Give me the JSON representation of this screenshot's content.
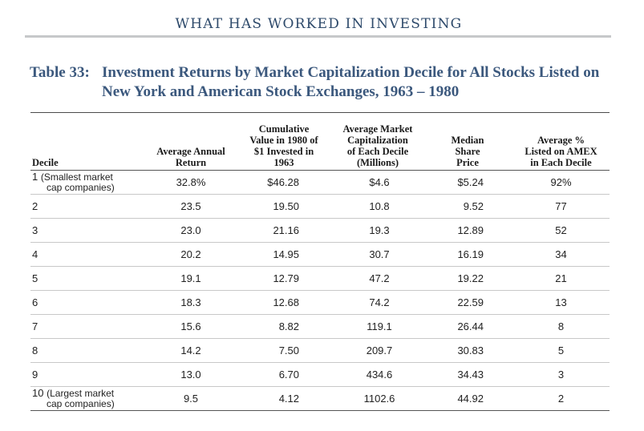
{
  "running_head": "WHAT HAS WORKED IN INVESTING",
  "table": {
    "number": "Table 33:",
    "title_line1": "Investment Returns by Market Capitalization Decile for All Stocks Listed on",
    "title_line2": "New York and American Stock Exchanges, 1963 – 1980",
    "headers": {
      "decile": "Decile",
      "avg_return": [
        "Average Annual",
        "Return"
      ],
      "cumulative": [
        "Cumulative",
        "Value in 1980 of",
        "$1 Invested in",
        "1963"
      ],
      "market_cap": [
        "Average Market",
        "Capitalization",
        "of Each Decile",
        "(Millions)"
      ],
      "median_price": [
        "Median",
        "Share",
        "Price"
      ],
      "amex": [
        "Average %",
        "Listed on AMEX",
        "in Each Decile"
      ]
    },
    "rows": [
      {
        "decile": "1",
        "label_a": "(Smallest market",
        "label_b": "cap companies)",
        "avg_return": "32.8%",
        "cumulative": "$46.28",
        "market_cap": "$4.6",
        "median_price": "$5.24",
        "amex": "92%"
      },
      {
        "decile": "2",
        "avg_return": "23.5",
        "cumulative": "19.50",
        "market_cap": "10.8",
        "median_price": "9.52",
        "amex": "77"
      },
      {
        "decile": "3",
        "avg_return": "23.0",
        "cumulative": "21.16",
        "market_cap": "19.3",
        "median_price": "12.89",
        "amex": "52"
      },
      {
        "decile": "4",
        "avg_return": "20.2",
        "cumulative": "14.95",
        "market_cap": "30.7",
        "median_price": "16.19",
        "amex": "34"
      },
      {
        "decile": "5",
        "avg_return": "19.1",
        "cumulative": "12.79",
        "market_cap": "47.2",
        "median_price": "19.22",
        "amex": "21"
      },
      {
        "decile": "6",
        "avg_return": "18.3",
        "cumulative": "12.68",
        "market_cap": "74.2",
        "median_price": "22.59",
        "amex": "13"
      },
      {
        "decile": "7",
        "avg_return": "15.6",
        "cumulative": "8.82",
        "market_cap": "119.1",
        "median_price": "26.44",
        "amex": "8"
      },
      {
        "decile": "8",
        "avg_return": "14.2",
        "cumulative": "7.50",
        "market_cap": "209.7",
        "median_price": "30.83",
        "amex": "5"
      },
      {
        "decile": "9",
        "avg_return": "13.0",
        "cumulative": "6.70",
        "market_cap": "434.6",
        "median_price": "34.43",
        "amex": "3"
      },
      {
        "decile": "10",
        "label_a": "(Largest market",
        "label_b": "cap companies)",
        "avg_return": "9.5",
        "cumulative": "4.12",
        "market_cap": "1102.6",
        "median_price": "44.92",
        "amex": "2"
      }
    ]
  }
}
